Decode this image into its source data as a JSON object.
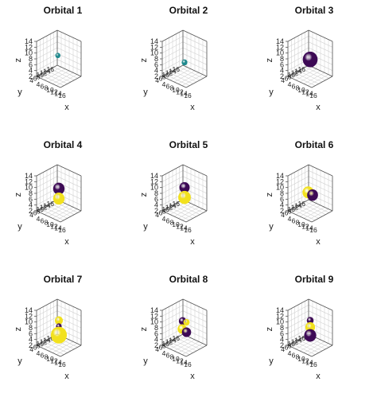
{
  "chart_data": {
    "type": "3d-isosurface",
    "axes": {
      "x": {
        "label": "x",
        "ticks": [
          "4",
          "6",
          "8",
          "10",
          "12",
          "14",
          "16"
        ],
        "range": [
          4,
          16
        ]
      },
      "y": {
        "label": "y",
        "ticks": [
          "16",
          "14",
          "12",
          "10",
          "8",
          "6",
          "4"
        ],
        "range": [
          4,
          16
        ]
      },
      "z": {
        "label": "z",
        "ticks": [
          "2",
          "4",
          "6",
          "8",
          "10",
          "12",
          "14"
        ],
        "range": [
          2,
          14
        ]
      }
    },
    "grid": true,
    "colors": {
      "positive": "#f2e11e",
      "negative": "#3d0a55",
      "s_orbital": "#1f8a8e"
    },
    "panels": [
      {
        "title": "Orbital 1",
        "lobes": [
          {
            "color": "s_orbital",
            "center": [
              9.5,
              10,
              9.0
            ],
            "r": 0.9
          }
        ]
      },
      {
        "title": "Orbital 2",
        "lobes": [
          {
            "color": "s_orbital",
            "center": [
              10,
              10,
              6.8
            ],
            "r": 1.0
          }
        ]
      },
      {
        "title": "Orbital 3",
        "lobes": [
          {
            "color": "negative",
            "center": [
              10,
              10,
              7.8
            ],
            "r": 2.6
          }
        ]
      },
      {
        "title": "Orbital 4",
        "lobes": [
          {
            "color": "negative",
            "center": [
              10,
              10,
              9.6
            ],
            "r": 2.0
          },
          {
            "color": "positive",
            "center": [
              10,
              10,
              6.2
            ],
            "r": 2.0
          }
        ]
      },
      {
        "title": "Orbital 5",
        "lobes": [
          {
            "color": "negative",
            "center": [
              10,
              10,
              10.0
            ],
            "r": 1.8
          },
          {
            "color": "positive",
            "center": [
              10,
              10,
              6.6
            ],
            "r": 2.2
          }
        ]
      },
      {
        "title": "Orbital 6",
        "lobes": [
          {
            "color": "positive",
            "center": [
              9.0,
              10,
              8.0
            ],
            "r": 2.0
          },
          {
            "color": "negative",
            "center": [
              11.2,
              10,
              7.8
            ],
            "r": 1.9
          }
        ]
      },
      {
        "title": "Orbital 7",
        "lobes": [
          {
            "color": "positive",
            "center": [
              10,
              10,
              10.5
            ],
            "r": 1.4
          },
          {
            "color": "negative",
            "center": [
              10,
              10,
              8.5
            ],
            "r": 1.0
          },
          {
            "color": "positive",
            "center": [
              10,
              10,
              5.5
            ],
            "r": 2.8
          }
        ]
      },
      {
        "title": "Orbital 8",
        "lobes": [
          {
            "color": "negative",
            "center": [
              9.0,
              10,
              10.0
            ],
            "r": 1.3
          },
          {
            "color": "positive",
            "center": [
              11.0,
              10,
              10.2
            ],
            "r": 1.1
          },
          {
            "color": "positive",
            "center": [
              8.8,
              10,
              7.2
            ],
            "r": 1.6
          },
          {
            "color": "negative",
            "center": [
              11.0,
              10,
              6.8
            ],
            "r": 1.6
          }
        ]
      },
      {
        "title": "Orbital 9",
        "lobes": [
          {
            "color": "negative",
            "center": [
              10,
              10,
              10.5
            ],
            "r": 1.2
          },
          {
            "color": "positive",
            "center": [
              10,
              10,
              8.2
            ],
            "r": 1.7
          },
          {
            "color": "negative",
            "center": [
              10,
              10,
              5.4
            ],
            "r": 2.1
          }
        ]
      }
    ]
  }
}
